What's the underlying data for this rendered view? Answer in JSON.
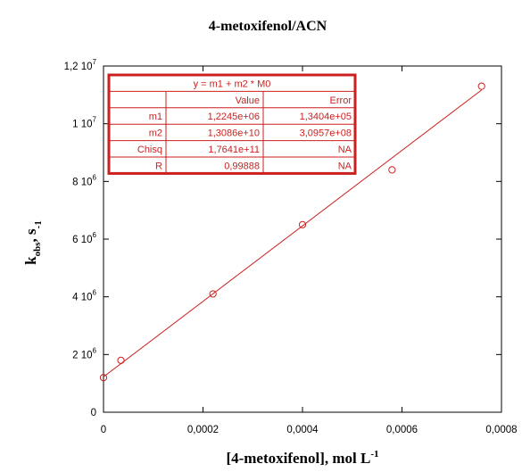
{
  "chart_data": {
    "type": "scatter",
    "title": "4-metoxifenol/ACN",
    "xlabel": {
      "main": "[4-metoxifenol], mol L",
      "sup": "-1"
    },
    "ylabel": {
      "k": "k",
      "sub": "obs",
      "rest": ", s",
      "sup": "-1"
    },
    "xlim": [
      0,
      0.0008
    ],
    "ylim": [
      0,
      12000000
    ],
    "x_ticks": [
      {
        "value": 0,
        "label": "0"
      },
      {
        "value": 0.0002,
        "label": "0,0002"
      },
      {
        "value": 0.0004,
        "label": "0,0004"
      },
      {
        "value": 0.0006,
        "label": "0,0006"
      },
      {
        "value": 0.0008,
        "label": "0,0008"
      }
    ],
    "y_ticks": [
      {
        "value": 0,
        "base": "0",
        "exp": ""
      },
      {
        "value": 2000000,
        "base": "2 10",
        "exp": "6"
      },
      {
        "value": 4000000,
        "base": "4 10",
        "exp": "6"
      },
      {
        "value": 6000000,
        "base": "6 10",
        "exp": "6"
      },
      {
        "value": 8000000,
        "base": "8 10",
        "exp": "6"
      },
      {
        "value": 10000000,
        "base": "1 10",
        "exp": "7"
      },
      {
        "value": 12000000,
        "base": "1,2 10",
        "exp": "7"
      }
    ],
    "series": [
      {
        "points": [
          {
            "x": 0.0,
            "y": 1200000
          },
          {
            "x": 3.5e-05,
            "y": 1800000
          },
          {
            "x": 0.00022,
            "y": 4100000
          },
          {
            "x": 0.0004,
            "y": 6500000
          },
          {
            "x": 0.00058,
            "y": 8400000
          },
          {
            "x": 0.00076,
            "y": 11300000
          }
        ],
        "marker": "open-circle",
        "color": "#cc1f1f"
      }
    ],
    "fit": {
      "type": "linear",
      "m1": 1224500,
      "m2": 13086000000,
      "color": "#cc1f1f"
    },
    "fit_table": {
      "equation": "y = m1 + m2 * M0",
      "headers": [
        "",
        "Value",
        "Error"
      ],
      "rows": [
        [
          "m1",
          "1,2245e+06",
          "1,3404e+05"
        ],
        [
          "m2",
          "1,3086e+10",
          "3,0957e+08"
        ],
        [
          "Chisq",
          "1,7641e+11",
          "NA"
        ],
        [
          "R",
          "0,99888",
          "NA"
        ]
      ],
      "color": "#cc1f1f"
    },
    "grid": false
  }
}
